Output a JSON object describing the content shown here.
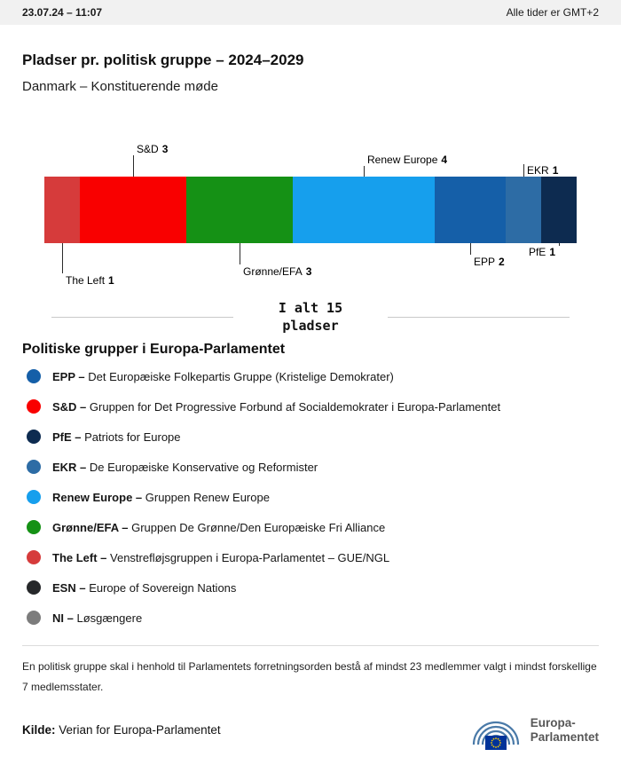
{
  "header": {
    "datetime": "23.07.24 – 11:07",
    "timezone": "Alle tider er GMT+2"
  },
  "title": "Pladser pr. politisk gruppe – 2024–2029",
  "subtitle": "Danmark – Konstituerende møde",
  "chart_data": {
    "type": "bar",
    "title": "Pladser pr. politisk gruppe – 2024–2029",
    "subtitle": "Danmark – Konstituerende møde",
    "total": 15,
    "total_label": "I alt 15 pladser",
    "unit": "pladser",
    "orientation": "horizontal-stacked",
    "segments": [
      {
        "name": "The Left",
        "seats": 1,
        "color": "#d63b3b",
        "label_side": "below"
      },
      {
        "name": "S&D",
        "seats": 3,
        "color": "#f90000",
        "label_side": "above"
      },
      {
        "name": "Grønne/EFA",
        "seats": 3,
        "color": "#159115",
        "label_side": "below"
      },
      {
        "name": "Renew Europe",
        "seats": 4,
        "color": "#169fed",
        "label_side": "above"
      },
      {
        "name": "EPP",
        "seats": 2,
        "color": "#155fa8",
        "label_side": "below"
      },
      {
        "name": "EKR",
        "seats": 1,
        "color": "#2d6ca5",
        "label_side": "above"
      },
      {
        "name": "PfE",
        "seats": 1,
        "color": "#0d2b50",
        "label_side": "below"
      }
    ]
  },
  "legend": {
    "heading": "Politiske grupper i Europa-Parlamentet",
    "items": [
      {
        "abbr": "EPP –",
        "desc": "Det Europæiske Folkepartis Gruppe (Kristelige Demokrater)",
        "color": "#155fa8"
      },
      {
        "abbr": "S&D –",
        "desc": "Gruppen for Det Progressive Forbund af Socialdemokrater i Europa-Parlamentet",
        "color": "#f90000"
      },
      {
        "abbr": "PfE –",
        "desc": "Patriots for Europe",
        "color": "#0d2b50"
      },
      {
        "abbr": "EKR –",
        "desc": "De Europæiske Konservative og Reformister",
        "color": "#2d6ca5"
      },
      {
        "abbr": "Renew Europe –",
        "desc": "Gruppen Renew Europe",
        "color": "#169fed"
      },
      {
        "abbr": "Grønne/EFA –",
        "desc": "Gruppen De Grønne/Den Europæiske Fri Alliance",
        "color": "#159115"
      },
      {
        "abbr": "The Left –",
        "desc": "Venstrefløjsgruppen i Europa-Parlamentet – GUE/NGL",
        "color": "#d63b3b"
      },
      {
        "abbr": "ESN –",
        "desc": "Europe of Sovereign Nations",
        "color": "#26282a"
      },
      {
        "abbr": "NI –",
        "desc": "Løsgængere",
        "color": "#7c7c7c"
      }
    ]
  },
  "footnote": "En politisk gruppe skal i henhold til Parlamentets forretningsorden bestå af mindst 23 medlemmer valgt i mindst forskellige 7 medlemsstater.",
  "source": {
    "label": "Kilde:",
    "text": "Verian for Europa-Parlamentet"
  },
  "logo": {
    "line1": "Europa-",
    "line2": "Parlamentet"
  }
}
